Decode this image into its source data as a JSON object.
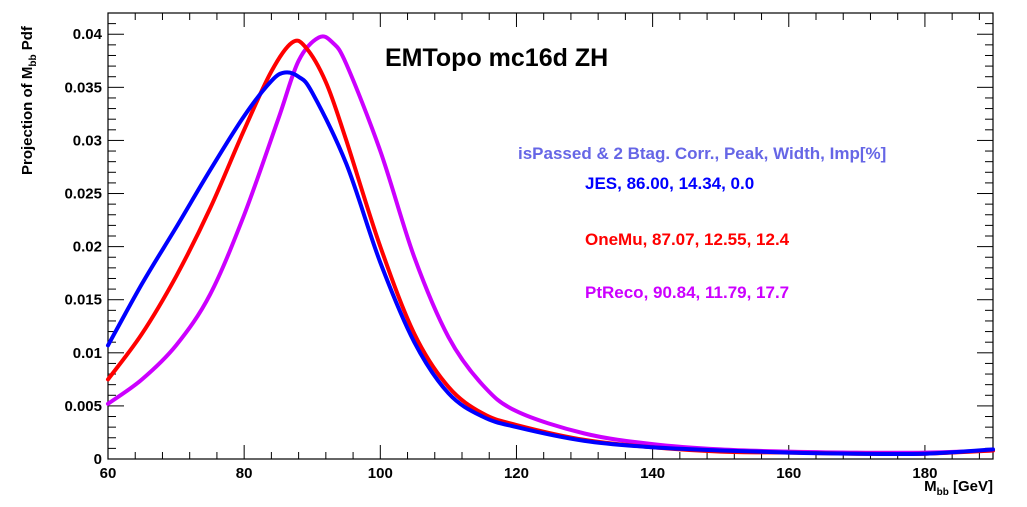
{
  "chart_data": {
    "type": "line",
    "title": "EMTopo mc16d ZH",
    "xlabel": {
      "main": "M",
      "sub": "bb",
      "rest": " [GeV]"
    },
    "ylabel": {
      "main": "Projection of M",
      "sub": "bb",
      "rest": " Pdf"
    },
    "xlim": [
      60,
      190
    ],
    "ylim": [
      0,
      0.042
    ],
    "xticks": [
      60,
      80,
      100,
      120,
      140,
      160,
      180
    ],
    "xtick_labels": [
      "60",
      "80",
      "100",
      "120",
      "140",
      "160",
      "180"
    ],
    "yticks": [
      0,
      0.005,
      0.01,
      0.015,
      0.02,
      0.025,
      0.03,
      0.035,
      0.04
    ],
    "ytick_labels": [
      "0",
      "0.005",
      "0.01",
      "0.015",
      "0.02",
      "0.025",
      "0.03",
      "0.035",
      "0.04"
    ],
    "legend_header": "isPassed & 2 Btag. Corr., Peak, Width, Imp[%]",
    "grid": false,
    "series": [
      {
        "name": "JES, 86.00, 14.34, 0.0",
        "color": "#0000ff",
        "x": [
          60,
          65,
          70,
          75,
          80,
          84,
          86,
          88,
          90,
          95,
          100,
          105,
          110,
          115,
          120,
          130,
          140,
          150,
          160,
          170,
          180,
          190
        ],
        "y": [
          0.0107,
          0.0165,
          0.0218,
          0.0272,
          0.0323,
          0.0356,
          0.0364,
          0.036,
          0.0345,
          0.0278,
          0.0185,
          0.011,
          0.0062,
          0.004,
          0.003,
          0.0017,
          0.0011,
          0.0008,
          0.0006,
          0.0005,
          0.0005,
          0.0009
        ]
      },
      {
        "name": "OneMu, 87.07, 12.55, 12.4",
        "color": "#ff0000",
        "x": [
          60,
          65,
          70,
          75,
          80,
          84,
          87,
          89,
          92,
          95,
          100,
          105,
          110,
          115,
          120,
          130,
          140,
          150,
          160,
          170,
          180,
          190
        ],
        "y": [
          0.0075,
          0.0118,
          0.0172,
          0.0236,
          0.031,
          0.0365,
          0.0392,
          0.0388,
          0.0355,
          0.03,
          0.02,
          0.0118,
          0.0068,
          0.0043,
          0.0032,
          0.0018,
          0.0011,
          0.0007,
          0.0006,
          0.0005,
          0.0005,
          0.0008
        ]
      },
      {
        "name": "PtReco, 90.84, 11.79, 17.7",
        "color": "#cc00ff",
        "x": [
          60,
          65,
          70,
          75,
          80,
          85,
          88,
          91,
          93,
          95,
          100,
          105,
          110,
          115,
          120,
          130,
          140,
          150,
          160,
          170,
          180,
          190
        ],
        "y": [
          0.0052,
          0.0075,
          0.0107,
          0.0155,
          0.023,
          0.032,
          0.0375,
          0.0397,
          0.0392,
          0.0372,
          0.029,
          0.019,
          0.0115,
          0.007,
          0.0045,
          0.0024,
          0.0014,
          0.0009,
          0.0007,
          0.0006,
          0.0006,
          0.0008
        ]
      }
    ]
  },
  "colors": {
    "header": "#6666e6",
    "axis": "#000000"
  }
}
